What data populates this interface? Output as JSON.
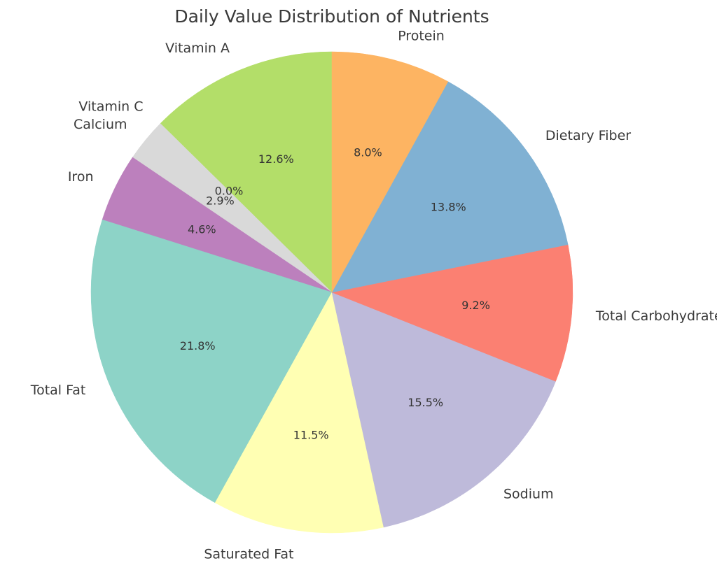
{
  "chart_data": {
    "type": "pie",
    "title": "Daily Value Distribution of Nutrients",
    "start_angle_deg": 90,
    "direction": "counterclockwise",
    "slices": [
      {
        "label": "Vitamin A",
        "pct_label": "12.6%",
        "value": 12.6,
        "color": "#b3de69"
      },
      {
        "label": "Vitamin C",
        "pct_label": "0.0%",
        "value": 0.0,
        "color": "#fccde5"
      },
      {
        "label": "Calcium",
        "pct_label": "2.9%",
        "value": 2.9,
        "color": "#d9d9d9"
      },
      {
        "label": "Iron",
        "pct_label": "4.6%",
        "value": 4.6,
        "color": "#bc80bd"
      },
      {
        "label": "Total Fat",
        "pct_label": "21.8%",
        "value": 21.8,
        "color": "#8dd3c7"
      },
      {
        "label": "Saturated Fat",
        "pct_label": "11.5%",
        "value": 11.5,
        "color": "#ffffb3"
      },
      {
        "label": "Sodium",
        "pct_label": "15.5%",
        "value": 15.5,
        "color": "#bebada"
      },
      {
        "label": "Total Carbohydrates",
        "pct_label": "9.2%",
        "value": 9.2,
        "color": "#fb8072"
      },
      {
        "label": "Dietary Fiber",
        "pct_label": "13.8%",
        "value": 13.8,
        "color": "#80b1d3"
      },
      {
        "label": "Protein",
        "pct_label": "8.0%",
        "value": 8.0,
        "color": "#fdb462"
      }
    ]
  }
}
